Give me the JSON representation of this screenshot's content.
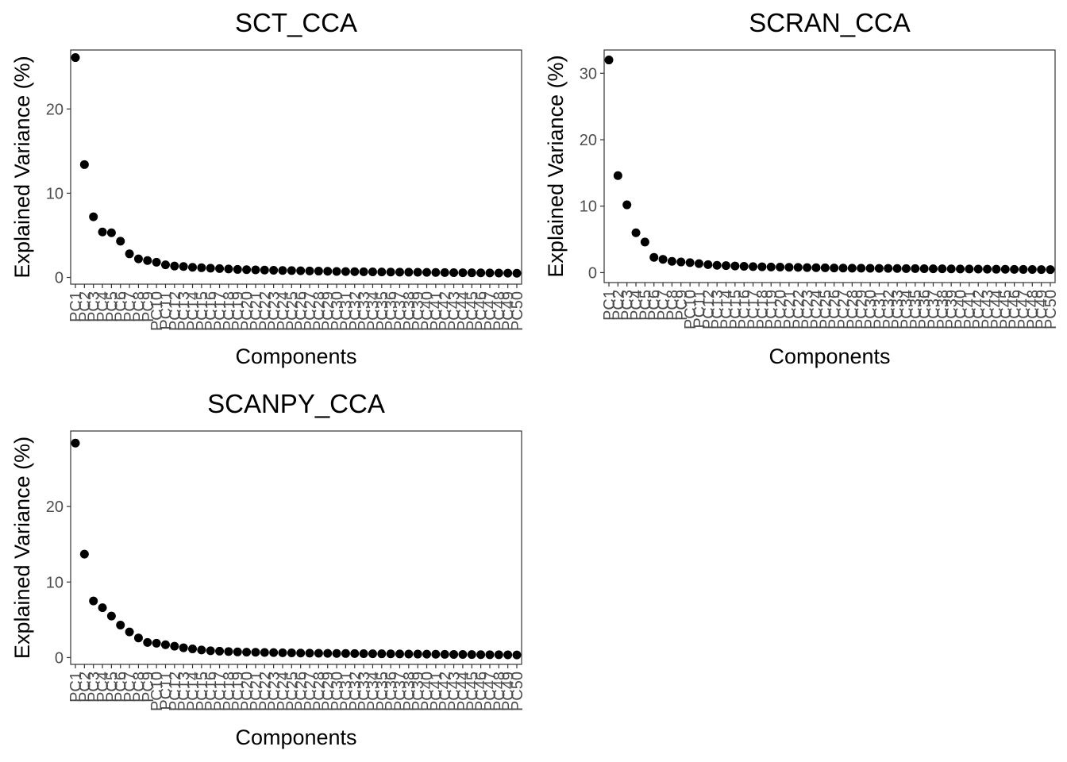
{
  "chart_data": [
    {
      "type": "scatter",
      "title": "SCT_CCA",
      "xlabel": "Components",
      "ylabel": "Explained Variance (%)",
      "yticks": [
        0,
        10,
        20
      ],
      "ylim": [
        -0.8,
        27
      ],
      "categories": [
        "PC1",
        "PC2",
        "PC3",
        "PC4",
        "PC5",
        "PC6",
        "PC7",
        "PC8",
        "PC9",
        "PC10",
        "PC11",
        "PC12",
        "PC13",
        "PC14",
        "PC15",
        "PC16",
        "PC17",
        "PC18",
        "PC19",
        "PC20",
        "PC21",
        "PC22",
        "PC23",
        "PC24",
        "PC25",
        "PC26",
        "PC27",
        "PC28",
        "PC29",
        "PC30",
        "PC31",
        "PC32",
        "PC33",
        "PC34",
        "PC35",
        "PC36",
        "PC37",
        "PC38",
        "PC39",
        "PC40",
        "PC41",
        "PC42",
        "PC43",
        "PC44",
        "PC45",
        "PC46",
        "PC47",
        "PC48",
        "PC49",
        "PC50"
      ],
      "values": [
        26.1,
        13.4,
        7.2,
        5.4,
        5.3,
        4.3,
        2.8,
        2.2,
        2.0,
        1.8,
        1.5,
        1.35,
        1.3,
        1.2,
        1.15,
        1.1,
        1.05,
        1.0,
        0.95,
        0.92,
        0.9,
        0.87,
        0.85,
        0.83,
        0.81,
        0.79,
        0.77,
        0.75,
        0.73,
        0.71,
        0.7,
        0.68,
        0.67,
        0.66,
        0.65,
        0.64,
        0.63,
        0.62,
        0.61,
        0.6,
        0.59,
        0.58,
        0.57,
        0.56,
        0.55,
        0.54,
        0.53,
        0.52,
        0.51,
        0.5
      ]
    },
    {
      "type": "scatter",
      "title": "SCRAN_CCA",
      "xlabel": "Components",
      "ylabel": "Explained Variance (%)",
      "yticks": [
        0,
        10,
        20,
        30
      ],
      "ylim": [
        -1.5,
        33.5
      ],
      "categories": [
        "PC1",
        "PC2",
        "PC3",
        "PC4",
        "PC5",
        "PC6",
        "PC7",
        "PC8",
        "PC9",
        "PC10",
        "PC11",
        "PC12",
        "PC13",
        "PC14",
        "PC15",
        "PC16",
        "PC17",
        "PC18",
        "PC19",
        "PC20",
        "PC21",
        "PC22",
        "PC23",
        "PC24",
        "PC25",
        "PC26",
        "PC27",
        "PC28",
        "PC29",
        "PC30",
        "PC31",
        "PC32",
        "PC33",
        "PC34",
        "PC35",
        "PC36",
        "PC37",
        "PC38",
        "PC39",
        "PC40",
        "PC41",
        "PC42",
        "PC43",
        "PC44",
        "PC45",
        "PC46",
        "PC47",
        "PC48",
        "PC49",
        "PC50"
      ],
      "values": [
        32.0,
        14.6,
        10.2,
        6.0,
        4.6,
        2.3,
        2.0,
        1.7,
        1.6,
        1.5,
        1.35,
        1.2,
        1.1,
        1.05,
        1.0,
        0.95,
        0.9,
        0.88,
        0.85,
        0.83,
        0.8,
        0.78,
        0.76,
        0.74,
        0.72,
        0.7,
        0.68,
        0.67,
        0.66,
        0.65,
        0.64,
        0.63,
        0.62,
        0.61,
        0.6,
        0.59,
        0.58,
        0.57,
        0.56,
        0.55,
        0.54,
        0.53,
        0.52,
        0.51,
        0.5,
        0.49,
        0.48,
        0.47,
        0.46,
        0.45
      ]
    },
    {
      "type": "scatter",
      "title": "SCANPY_CCA",
      "xlabel": "Components",
      "ylabel": "Explained Variance (%)",
      "yticks": [
        0,
        10,
        20
      ],
      "ylim": [
        -0.9,
        30
      ],
      "categories": [
        "PC1",
        "PC2",
        "PC3",
        "PC4",
        "PC5",
        "PC6",
        "PC7",
        "PC8",
        "PC9",
        "PC10",
        "PC11",
        "PC12",
        "PC13",
        "PC14",
        "PC15",
        "PC16",
        "PC17",
        "PC18",
        "PC19",
        "PC20",
        "PC21",
        "PC22",
        "PC23",
        "PC24",
        "PC25",
        "PC26",
        "PC27",
        "PC28",
        "PC29",
        "PC30",
        "PC31",
        "PC32",
        "PC33",
        "PC34",
        "PC35",
        "PC36",
        "PC37",
        "PC38",
        "PC39",
        "PC40",
        "PC41",
        "PC42",
        "PC43",
        "PC44",
        "PC45",
        "PC46",
        "PC47",
        "PC48",
        "PC49",
        "PC50"
      ],
      "values": [
        28.4,
        13.7,
        7.5,
        6.6,
        5.5,
        4.3,
        3.4,
        2.6,
        2.0,
        1.9,
        1.7,
        1.5,
        1.3,
        1.15,
        1.0,
        0.9,
        0.85,
        0.8,
        0.75,
        0.72,
        0.7,
        0.68,
        0.66,
        0.64,
        0.62,
        0.6,
        0.58,
        0.57,
        0.56,
        0.55,
        0.54,
        0.53,
        0.52,
        0.51,
        0.5,
        0.49,
        0.48,
        0.47,
        0.46,
        0.45,
        0.44,
        0.43,
        0.42,
        0.41,
        0.4,
        0.39,
        0.38,
        0.37,
        0.36,
        0.35
      ]
    }
  ]
}
